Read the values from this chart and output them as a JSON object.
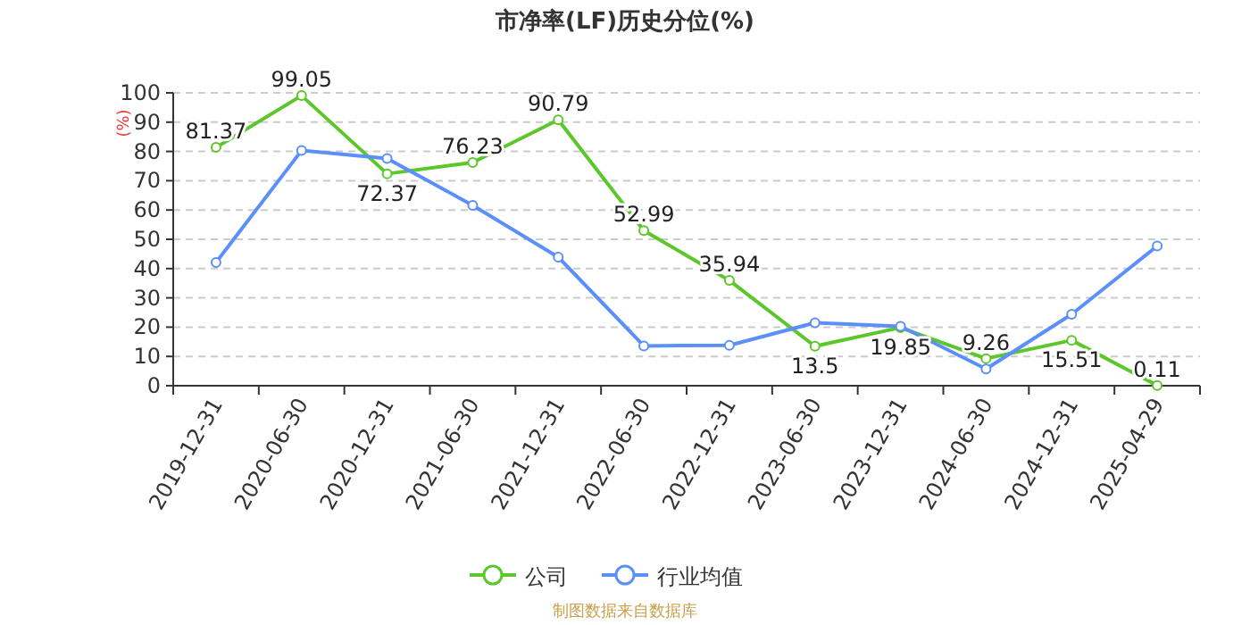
{
  "chart_data": {
    "type": "line",
    "title": "市净率(LF)历史分位(%)",
    "ylabel": "(%)",
    "categories": [
      "2019-12-31",
      "2020-06-30",
      "2020-12-31",
      "2021-06-30",
      "2021-12-31",
      "2022-06-30",
      "2022-12-31",
      "2023-06-30",
      "2023-12-31",
      "2024-06-30",
      "2024-12-31",
      "2025-04-29"
    ],
    "series": [
      {
        "name": "公司",
        "color": "#5cc72a",
        "values": [
          81.37,
          99.05,
          72.37,
          76.23,
          90.79,
          52.99,
          35.94,
          13.5,
          19.85,
          9.26,
          15.51,
          0.11
        ],
        "data_labels": true
      },
      {
        "name": "行业均值",
        "color": "#5b8ff9",
        "values": [
          42.1,
          80.3,
          77.6,
          61.6,
          43.9,
          13.6,
          13.8,
          21.5,
          20.3,
          5.7,
          24.4,
          47.7
        ]
      }
    ],
    "ylim": [
      0,
      100
    ],
    "yticks": [
      0,
      10,
      20,
      30,
      40,
      50,
      60,
      70,
      80,
      90,
      100
    ],
    "grid": "y",
    "legend": "bottom",
    "marker": "circle",
    "line_style": "solid",
    "annotations": [
      "制图数据来自数据库"
    ]
  }
}
